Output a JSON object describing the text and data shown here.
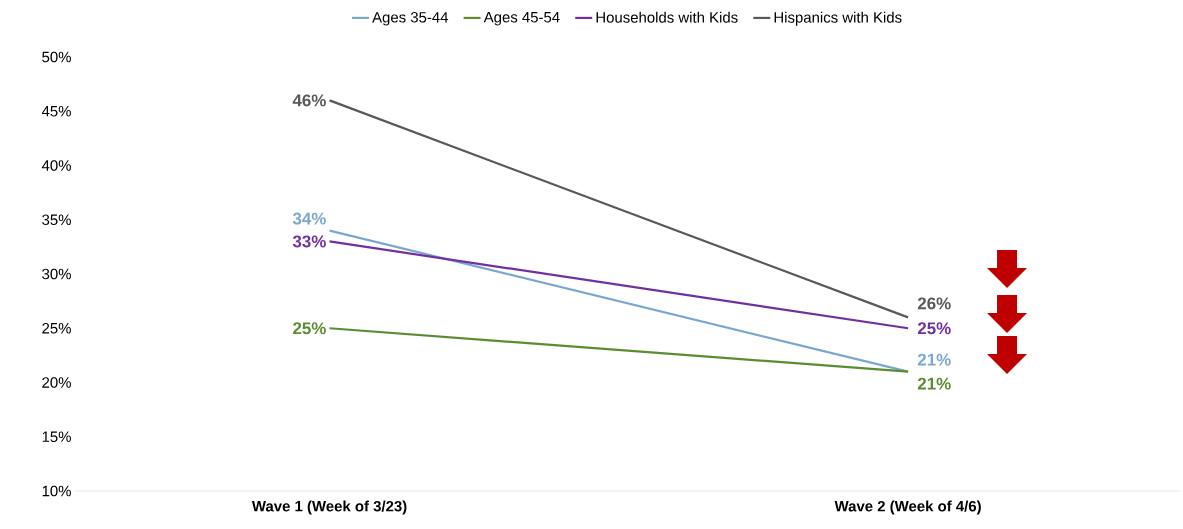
{
  "chart_data": {
    "type": "line",
    "categories": [
      "Wave 1 (Week of 3/23)",
      "Wave 2 (Week of 4/6)"
    ],
    "series": [
      {
        "name": "Ages 35-44",
        "color": "#7BA7CF",
        "values": [
          34,
          21
        ],
        "value_labels": [
          "34%",
          "21%"
        ]
      },
      {
        "name": "Ages 45-54",
        "color": "#5B8C32",
        "values": [
          25,
          21
        ],
        "value_labels": [
          "25%",
          "21%"
        ]
      },
      {
        "name": "Households with Kids",
        "color": "#7030A0",
        "values": [
          33,
          25
        ],
        "value_labels": [
          "33%",
          "25%"
        ]
      },
      {
        "name": "Hispanics with Kids",
        "color": "#595959",
        "values": [
          46,
          26
        ],
        "value_labels": [
          "46%",
          "26%"
        ]
      }
    ],
    "ylim": [
      10,
      50
    ],
    "yticks": [
      {
        "value": 10,
        "label": "10%"
      },
      {
        "value": 15,
        "label": "15%"
      },
      {
        "value": 20,
        "label": "20%"
      },
      {
        "value": 25,
        "label": "25%"
      },
      {
        "value": 30,
        "label": "30%"
      },
      {
        "value": 35,
        "label": "35%"
      },
      {
        "value": 40,
        "label": "40%"
      },
      {
        "value": 45,
        "label": "45%"
      },
      {
        "value": 50,
        "label": "50%"
      }
    ],
    "legend": "top",
    "marker": "none",
    "line_style": "solid"
  }
}
